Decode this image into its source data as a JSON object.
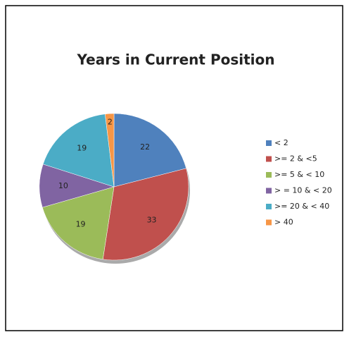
{
  "chart_data": {
    "type": "pie",
    "title": "Years in Current Position",
    "categories": [
      "< 2",
      ">= 2 & <5",
      ">= 5 & < 10",
      "> = 10 &  < 20",
      ">= 20 & < 40",
      "> 40"
    ],
    "values": [
      22,
      33,
      19,
      10,
      19,
      2
    ],
    "colors": [
      "#4f81bd",
      "#c0504d",
      "#9bbb59",
      "#8064a2",
      "#4bacc6",
      "#f79646"
    ],
    "legend": "right"
  }
}
